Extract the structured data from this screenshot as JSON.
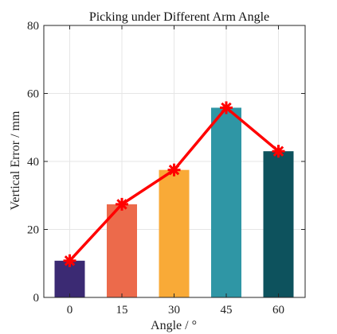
{
  "chart_data": {
    "type": "bar",
    "title": "Picking under Different Arm Angle",
    "xlabel": "Angle / °",
    "ylabel": "Vertical Error / mm",
    "categories": [
      "0",
      "15",
      "30",
      "45",
      "60"
    ],
    "values": [
      10.8,
      27.4,
      37.5,
      55.8,
      43.0
    ],
    "ylim": [
      0,
      80
    ],
    "yticks": [
      0,
      20,
      40,
      60,
      80
    ],
    "grid": true,
    "bar_colors": [
      "#3b2a73",
      "#ec6a4b",
      "#f9aa37",
      "#2f96a5",
      "#0d525d"
    ],
    "overlay_line": {
      "type": "line",
      "values": [
        10.8,
        27.4,
        37.5,
        55.8,
        43.0
      ],
      "color": "#ff0000",
      "marker": "asterisk"
    }
  }
}
